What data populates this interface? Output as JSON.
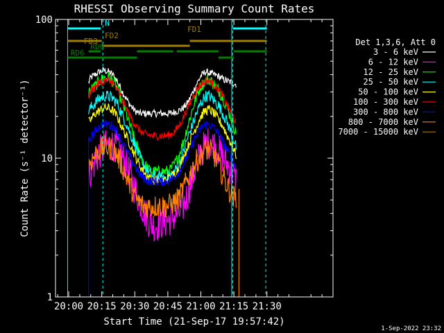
{
  "chart_data": {
    "type": "line",
    "title": "RHESSI Observing Summary Count Rates",
    "xlabel": "Start Time (21-Sep-17 19:57:42)",
    "ylabel": "Count Rate (s⁻¹ detector⁻¹)",
    "yscale": "log",
    "xlim_min": [
      -6,
      120
    ],
    "ylim": [
      1,
      100
    ],
    "x_tick_labels": [
      {
        "t": 0,
        "label": "20:00"
      },
      {
        "t": 15,
        "label": "20:15"
      },
      {
        "t": 30,
        "label": "20:30"
      },
      {
        "t": 45,
        "label": "20:45"
      },
      {
        "t": 60,
        "label": "21:00"
      },
      {
        "t": 75,
        "label": "21:15"
      },
      {
        "t": 90,
        "label": "21:30"
      }
    ],
    "y_tick_labels": [
      {
        "v": 100,
        "label": "100"
      },
      {
        "v": 10,
        "label": "10"
      },
      {
        "v": 1,
        "label": "1"
      }
    ],
    "legend_header": "Det 1,3,6, Att 0",
    "legend_position": "right",
    "series": [
      {
        "name": "3 - 6 keV",
        "color": "#ffffff",
        "x": [
          9,
          10,
          12,
          14,
          16,
          18,
          20,
          22,
          24,
          26,
          28,
          30,
          32,
          34,
          36,
          38,
          40,
          42,
          44,
          46,
          48,
          50,
          52,
          54,
          56,
          58,
          60,
          62,
          64,
          66,
          68,
          70,
          72,
          74,
          76
        ],
        "y": [
          35,
          38,
          40,
          42,
          43,
          42,
          40,
          36,
          31,
          27,
          24,
          22,
          21,
          21,
          21,
          21,
          21,
          21,
          21,
          21,
          21.5,
          22,
          23,
          25,
          29,
          34,
          39,
          42,
          41,
          40,
          39,
          37,
          36,
          35,
          34
        ]
      },
      {
        "name": "6 - 12 keV",
        "color": "#ff00ff",
        "x": [
          9,
          10,
          12,
          14,
          16,
          18,
          20,
          22,
          24,
          26,
          28,
          30,
          32,
          34,
          36,
          38,
          40,
          42,
          44,
          46,
          48,
          50,
          52,
          54,
          56,
          58,
          60,
          62,
          64,
          66,
          68,
          70,
          72,
          74,
          76
        ],
        "y": [
          7.5,
          8,
          9.5,
          11,
          12,
          12.5,
          12.5,
          12,
          10.5,
          9,
          7.5,
          6,
          5,
          4.2,
          3.6,
          3.3,
          3.3,
          3.4,
          3.5,
          3.6,
          3.8,
          4,
          4.5,
          5.5,
          7,
          9,
          11,
          12.5,
          13,
          12.5,
          11.5,
          10,
          9,
          8,
          7
        ]
      },
      {
        "name": "12 - 25 keV",
        "color": "#00ff00",
        "x": [
          9,
          10,
          12,
          14,
          16,
          18,
          20,
          22,
          24,
          26,
          28,
          30,
          32,
          34,
          36,
          38,
          40,
          42,
          44,
          46,
          48,
          50,
          52,
          54,
          56,
          58,
          60,
          62,
          64,
          66,
          68,
          70,
          72,
          74,
          76
        ],
        "y": [
          30,
          31,
          33,
          36,
          38,
          38,
          36,
          32,
          26,
          21,
          17,
          13.5,
          11,
          9.2,
          8.3,
          8,
          8,
          8,
          8,
          8.2,
          9,
          10.5,
          13,
          17,
          22,
          28,
          33,
          36,
          37,
          34,
          31,
          27,
          23,
          19,
          15
        ]
      },
      {
        "name": "25 - 50 keV",
        "color": "#00ffff",
        "x": [
          9,
          10,
          12,
          14,
          16,
          18,
          20,
          22,
          24,
          26,
          28,
          30,
          32,
          34,
          36,
          38,
          40,
          42,
          44,
          46,
          48,
          50,
          52,
          54,
          56,
          58,
          60,
          62,
          64,
          66,
          68,
          70,
          72,
          74,
          76
        ],
        "y": [
          22,
          23,
          25,
          27,
          28,
          28,
          27,
          25,
          21,
          18,
          15,
          12.5,
          10.5,
          9,
          8,
          7.5,
          7.3,
          7.3,
          7.3,
          7.5,
          8,
          9,
          11,
          14,
          17,
          21,
          25,
          28,
          28,
          26,
          24,
          21,
          18,
          15,
          12
        ]
      },
      {
        "name": "50 - 100 keV",
        "color": "#ffff00",
        "x": [
          9,
          10,
          12,
          14,
          16,
          18,
          20,
          22,
          24,
          26,
          28,
          30,
          32,
          34,
          36,
          38,
          40,
          42,
          44,
          46,
          48,
          50,
          52,
          54,
          56,
          58,
          60,
          62,
          64,
          66,
          68,
          70,
          72,
          74,
          76
        ],
        "y": [
          18,
          19,
          21,
          22,
          23,
          23,
          22,
          20,
          17,
          14.5,
          12.5,
          10.5,
          9,
          8,
          7.3,
          7,
          6.9,
          6.9,
          7,
          7.2,
          7.7,
          8.5,
          10,
          12,
          14.5,
          17,
          20,
          22,
          22.5,
          21,
          19,
          17,
          14.5,
          12.5,
          10.5
        ]
      },
      {
        "name": "100 - 300 keV",
        "color": "#ff0000",
        "x": [
          9,
          10,
          12,
          14,
          16,
          18,
          20,
          22,
          24,
          26,
          28,
          30,
          32,
          34,
          36,
          38,
          40,
          42,
          44,
          46,
          48,
          50,
          52,
          54,
          56,
          58,
          60,
          62,
          64,
          66,
          68,
          70,
          72,
          74,
          76
        ],
        "y": [
          28,
          30,
          33,
          35,
          36,
          36,
          35,
          31,
          27,
          23,
          20,
          17.5,
          16,
          15,
          14.7,
          14.5,
          14.5,
          14.5,
          14.5,
          14.7,
          15.5,
          17,
          19.5,
          23,
          27,
          31,
          34,
          36,
          36,
          34,
          31,
          28,
          24,
          21,
          18
        ]
      },
      {
        "name": "300 - 800 keV",
        "color": "#0000ff",
        "x": [
          9,
          10,
          12,
          14,
          16,
          18,
          20,
          22,
          24,
          26,
          28,
          30,
          32,
          34,
          36,
          38,
          40,
          42,
          44,
          46,
          48,
          50,
          52,
          54,
          56,
          58,
          60,
          62,
          64,
          66,
          68,
          70,
          72,
          74,
          76
        ],
        "y": [
          13,
          14,
          15.5,
          17,
          17.5,
          17.5,
          17,
          15.5,
          13.5,
          11.5,
          10,
          8.8,
          7.8,
          7.2,
          6.9,
          6.8,
          6.8,
          6.8,
          6.8,
          7,
          7.3,
          8,
          9,
          10.5,
          12.5,
          14.5,
          16.5,
          17.5,
          17.5,
          16.5,
          15,
          13,
          11.5,
          10,
          8.5
        ]
      },
      {
        "name": "800 - 7000 keV",
        "color": "#ff8000",
        "x": [
          9,
          10,
          12,
          14,
          16,
          18,
          20,
          22,
          24,
          26,
          28,
          30,
          32,
          34,
          36,
          38,
          40,
          42,
          44,
          46,
          48,
          50,
          52,
          54,
          56,
          58,
          60,
          62,
          64,
          66,
          68,
          70,
          72,
          74,
          76
        ],
        "y": [
          9,
          9.5,
          10.5,
          11.5,
          12,
          12,
          11.5,
          10.5,
          9,
          7.5,
          6.3,
          5.3,
          4.8,
          4.5,
          4.5,
          4.5,
          4.5,
          4.5,
          4.5,
          4.6,
          4.8,
          5.2,
          6,
          7,
          8.2,
          9.5,
          10.5,
          11.5,
          11.5,
          10.5,
          9,
          7.5,
          6.3,
          5.5,
          5
        ]
      }
    ],
    "reference_lines": [
      {
        "t": 15.5,
        "color": "#00ffff",
        "dashed": true
      },
      {
        "t": 74.5,
        "color": "#00ffff",
        "dashed": true
      },
      {
        "t": 89.5,
        "color": "#00ffff",
        "dashed": true
      },
      {
        "t": 74,
        "color": "#00ffff",
        "dashed": false
      }
    ],
    "flag_bars": [
      {
        "label": "N",
        "color": "#00ffff",
        "segments": [
          [
            -0.5,
            14.5
          ],
          [
            74.5,
            90
          ]
        ]
      },
      {
        "label": "FD2",
        "color": "#a08000",
        "segments": [
          [
            -0.5,
            15
          ]
        ]
      },
      {
        "label": "FD1",
        "color": "#a08000",
        "segments": [
          [
            55,
            90
          ]
        ]
      },
      {
        "label": "FD3",
        "color": "#a08000",
        "segments": [
          [
            15,
            55
          ]
        ]
      },
      {
        "label": "RD0",
        "color": "#008000",
        "segments": [
          [
            9,
            14.5
          ],
          [
            31,
            47.5
          ],
          [
            49,
            68
          ],
          [
            75,
            90
          ]
        ]
      },
      {
        "label": "RD6",
        "color": "#008000",
        "segments": [
          [
            -0.5,
            31
          ],
          [
            68,
            75
          ]
        ]
      }
    ],
    "footer_date": "1-Sep-2022 23:32"
  }
}
